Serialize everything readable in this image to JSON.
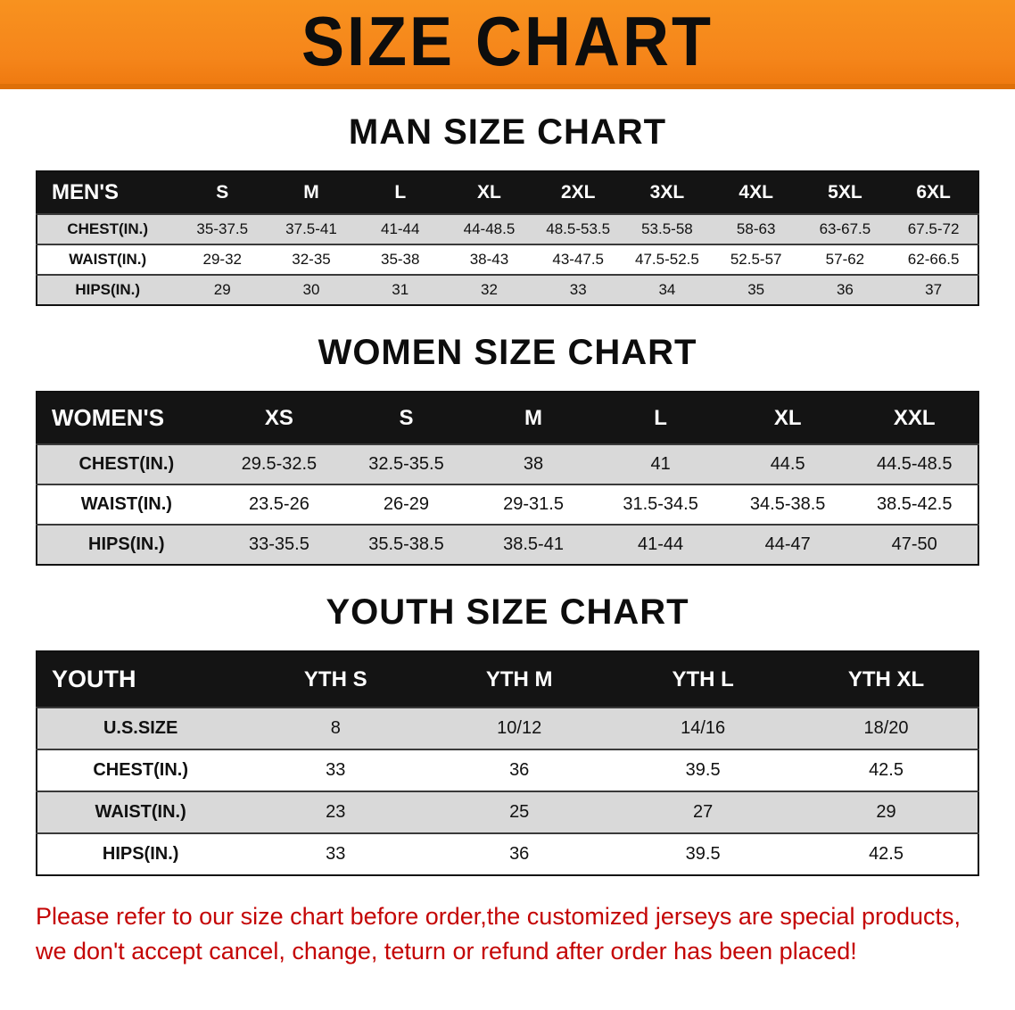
{
  "banner": {
    "title": "SIZE CHART"
  },
  "colors": {
    "banner_orange": "#f5851a",
    "header_black": "#141414",
    "row_gray": "#d9d9d9",
    "disclaimer_red": "#c40505"
  },
  "sections": [
    {
      "heading": "MAN SIZE CHART",
      "table": {
        "header": [
          "MEN'S",
          "S",
          "M",
          "L",
          "XL",
          "2XL",
          "3XL",
          "4XL",
          "5XL",
          "6XL"
        ],
        "rows": [
          {
            "label": "CHEST(IN.)",
            "values": [
              "35-37.5",
              "37.5-41",
              "41-44",
              "44-48.5",
              "48.5-53.5",
              "53.5-58",
              "58-63",
              "63-67.5",
              "67.5-72"
            ]
          },
          {
            "label": "WAIST(IN.)",
            "values": [
              "29-32",
              "32-35",
              "35-38",
              "38-43",
              "43-47.5",
              "47.5-52.5",
              "52.5-57",
              "57-62",
              "62-66.5"
            ]
          },
          {
            "label": "HIPS(IN.)",
            "values": [
              "29",
              "30",
              "31",
              "32",
              "33",
              "34",
              "35",
              "36",
              "37"
            ]
          }
        ]
      }
    },
    {
      "heading": "WOMEN SIZE CHART",
      "table": {
        "header": [
          "WOMEN'S",
          "XS",
          "S",
          "M",
          "L",
          "XL",
          "XXL"
        ],
        "rows": [
          {
            "label": "CHEST(IN.)",
            "values": [
              "29.5-32.5",
              "32.5-35.5",
              "38",
              "41",
              "44.5",
              "44.5-48.5"
            ]
          },
          {
            "label": "WAIST(IN.)",
            "values": [
              "23.5-26",
              "26-29",
              "29-31.5",
              "31.5-34.5",
              "34.5-38.5",
              "38.5-42.5"
            ]
          },
          {
            "label": "HIPS(IN.)",
            "values": [
              "33-35.5",
              "35.5-38.5",
              "38.5-41",
              "41-44",
              "44-47",
              "47-50"
            ]
          }
        ]
      }
    },
    {
      "heading": "YOUTH SIZE CHART",
      "table": {
        "header": [
          "YOUTH",
          "YTH S",
          "YTH M",
          "YTH L",
          "YTH XL"
        ],
        "rows": [
          {
            "label": "U.S.SIZE",
            "values": [
              "8",
              "10/12",
              "14/16",
              "18/20"
            ]
          },
          {
            "label": "CHEST(IN.)",
            "values": [
              "33",
              "36",
              "39.5",
              "42.5"
            ]
          },
          {
            "label": "WAIST(IN.)",
            "values": [
              "23",
              "25",
              "27",
              "29"
            ]
          },
          {
            "label": "HIPS(IN.)",
            "values": [
              "33",
              "36",
              "39.5",
              "42.5"
            ]
          }
        ]
      }
    }
  ],
  "disclaimer": {
    "line1": "Please refer to our size chart before order,the customized jerseys are special products,",
    "line2": "we don't accept cancel, change, teturn or refund after order has been placed!"
  }
}
